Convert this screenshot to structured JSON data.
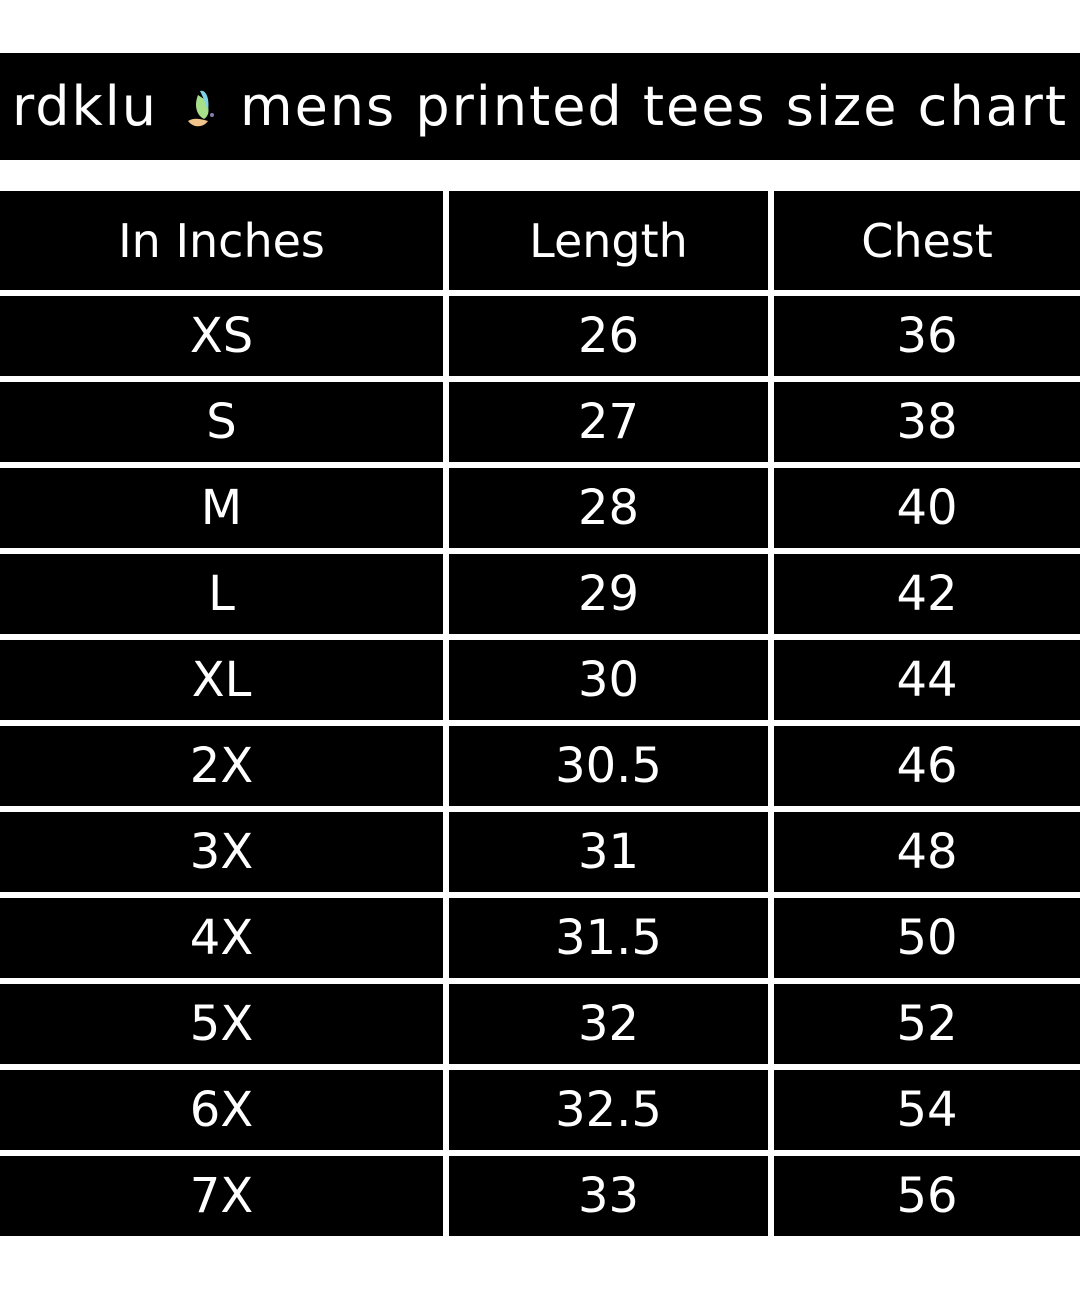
{
  "title": {
    "brand": "rdklu",
    "logo": "butterfly-icon",
    "text": "mens printed tees size chart"
  },
  "table": {
    "headers": [
      "In Inches",
      "Length",
      "Chest"
    ],
    "rows": [
      [
        "XS",
        "26",
        "36"
      ],
      [
        "S",
        "27",
        "38"
      ],
      [
        "M",
        "28",
        "40"
      ],
      [
        "L",
        "29",
        "42"
      ],
      [
        "XL",
        "30",
        "44"
      ],
      [
        "2X",
        "30.5",
        "46"
      ],
      [
        "3X",
        "31",
        "48"
      ],
      [
        "4X",
        "31.5",
        "50"
      ],
      [
        "5X",
        "32",
        "52"
      ],
      [
        "6X",
        "32.5",
        "54"
      ],
      [
        "7X",
        "33",
        "56"
      ]
    ]
  }
}
